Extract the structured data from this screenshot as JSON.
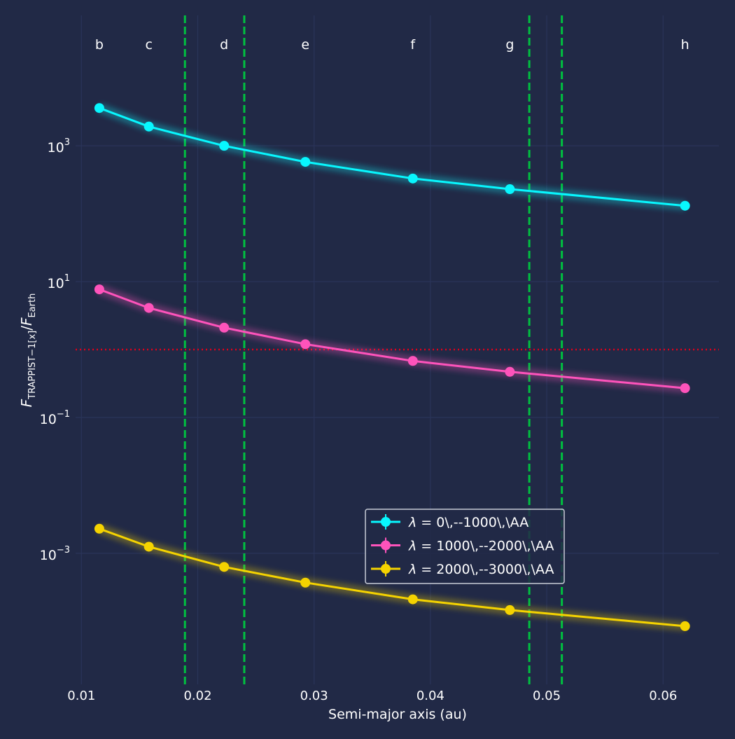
{
  "chart_data": {
    "type": "line",
    "xlabel": "Semi-major axis (au)",
    "ylabel": {
      "base": "F",
      "sub": "TRAPPIST−1[x]",
      "slash": "/",
      "base2": "F",
      "sub2": "Earth"
    },
    "xlim": [
      0.0095,
      0.0648
    ],
    "ylim_log10": [
      -4.93,
      4.92
    ],
    "y_scale": "log",
    "grid": true,
    "legend_position": "lower center-right",
    "x_ticks": [
      {
        "value": 0.01,
        "label": "0.01"
      },
      {
        "value": 0.02,
        "label": "0.02"
      },
      {
        "value": 0.03,
        "label": "0.03"
      },
      {
        "value": 0.04,
        "label": "0.04"
      },
      {
        "value": 0.05,
        "label": "0.05"
      },
      {
        "value": 0.06,
        "label": "0.06"
      }
    ],
    "y_ticks": [
      {
        "exp": 3,
        "base": "10",
        "sup": "3"
      },
      {
        "exp": 1,
        "base": "10",
        "sup": "1"
      },
      {
        "exp": -1,
        "base": "10",
        "sup": "−1"
      },
      {
        "exp": -3,
        "base": "10",
        "sup": "−3"
      }
    ],
    "planets": [
      {
        "label": "b",
        "x": 0.01154
      },
      {
        "label": "c",
        "x": 0.0158
      },
      {
        "label": "d",
        "x": 0.02227
      },
      {
        "label": "e",
        "x": 0.02925
      },
      {
        "label": "f",
        "x": 0.03849
      },
      {
        "label": "g",
        "x": 0.04683
      },
      {
        "label": "h",
        "x": 0.06189
      }
    ],
    "habitable_zone_lines_x": [
      0.0189,
      0.024,
      0.0485,
      0.0513
    ],
    "reference_line_y": 1,
    "series": [
      {
        "name": "0\\,--1000\\,\\AA",
        "color": "#08F7FE",
        "values": [
          3600,
          1920,
          1000,
          580,
          330,
          230,
          131
        ]
      },
      {
        "name": "1000\\,--2000\\,\\AA",
        "color": "#FE53BB",
        "values": [
          7.7,
          4.1,
          2.1,
          1.2,
          0.68,
          0.47,
          0.27
        ]
      },
      {
        "name": "2000\\,--3000\\,\\AA",
        "color": "#F5D300",
        "values": [
          0.0023,
          0.00125,
          0.00063,
          0.00037,
          0.00021,
          0.000146,
          8.45e-05
        ]
      }
    ],
    "legend_prefix": "λ =",
    "colors": {
      "background": "#212946",
      "grid": "#2A3459",
      "text": "#FFFFFF",
      "habitable_zone": "#00C040",
      "reference_line": "#E0001A"
    }
  }
}
